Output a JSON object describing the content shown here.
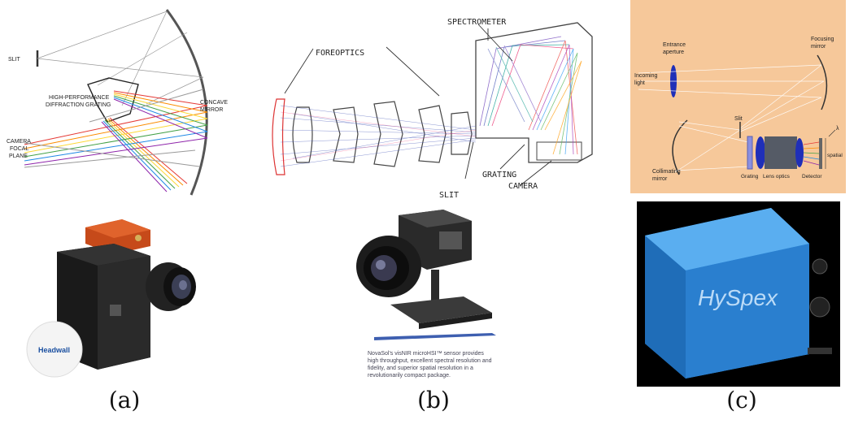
{
  "panel_a": {
    "diagram": {
      "slit": "SLIT",
      "grating_1": "HIGH-PERFORMANCE",
      "grating_2": "DIFFRACTION GRATING",
      "mirror_1": "CONCAVE",
      "mirror_2": "MIRROR",
      "camera_1": "CAMERA",
      "camera_2": "FOCAL",
      "camera_3": "PLANE"
    },
    "photo": {
      "ball_brand": "Headwall"
    },
    "caption": "(a)"
  },
  "panel_b": {
    "diagram": {
      "spectrometer": "SPECTROMETER",
      "foreoptics": "FOREOPTICS",
      "grating": "GRATING",
      "slit": "SLIT",
      "camera": "CAMERA"
    },
    "photo": {
      "blurb_1": "NovaSol's visNIR microHSI™ sensor provides",
      "blurb_2": "high throughput, excellent spectral resolution and",
      "blurb_3": "fidelity, and superior spatial resolution in a",
      "blurb_4": "revolutionarily compact package."
    },
    "caption": "(b)"
  },
  "panel_c": {
    "diagram": {
      "entrance_1": "Entrance",
      "entrance_2": "aperture",
      "incoming_1": "Incoming",
      "incoming_2": "light",
      "focusing_1": "Focusing",
      "focusing_2": "mirror",
      "slit": "Slit",
      "collimating_1": "Collimating",
      "collimating_2": "mirror",
      "grating": "Grating",
      "lens": "Lens optics",
      "detector": "Detector",
      "spatial": "spatial",
      "lambda": "λ"
    },
    "photo": {
      "brand": "HySpex"
    },
    "caption": "(c)"
  },
  "colors": {
    "panel_c_bg": "#f6c89a",
    "hyspex_blue": "#2f8fe0"
  }
}
